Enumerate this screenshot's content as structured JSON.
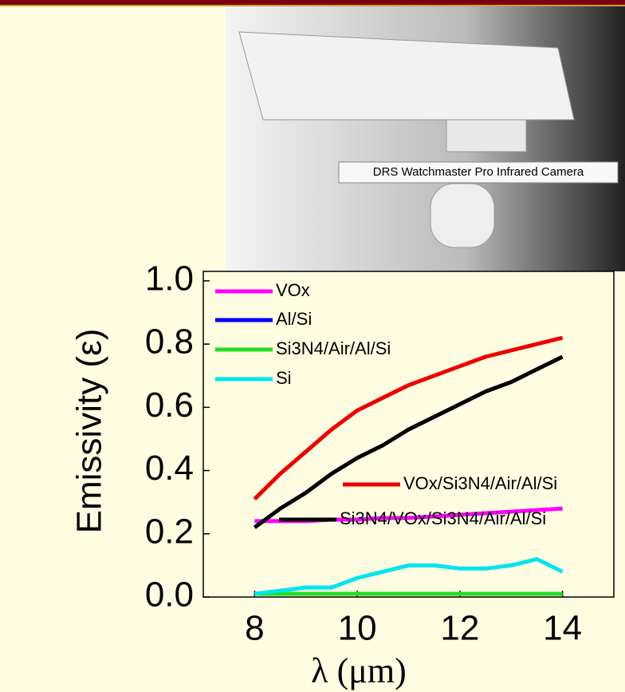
{
  "photo_caption": "DRS Watchmaster Pro Infrared Camera",
  "chart_data": {
    "type": "line",
    "x_label": "λ (μm)",
    "y_label": "Emissivity (ε)",
    "x": [
      8,
      8.5,
      9,
      9.5,
      10,
      10.5,
      11,
      11.5,
      12,
      12.5,
      13,
      13.5,
      14
    ],
    "series": [
      {
        "name": "VOx",
        "color": "#ff00ff",
        "values": [
          0.24,
          0.24,
          0.24,
          0.245,
          0.245,
          0.25,
          0.25,
          0.255,
          0.26,
          0.265,
          0.27,
          0.275,
          0.28
        ]
      },
      {
        "name": "Al/Si",
        "color": "#0000ff",
        "values": [
          0.01,
          0.01,
          0.01,
          0.01,
          0.01,
          0.01,
          0.01,
          0.01,
          0.01,
          0.01,
          0.01,
          0.01,
          0.01
        ]
      },
      {
        "name": "Si3N4/Air/Al/Si",
        "color": "#22dd22",
        "values": [
          0.01,
          0.01,
          0.01,
          0.01,
          0.01,
          0.01,
          0.01,
          0.01,
          0.01,
          0.01,
          0.01,
          0.01,
          0.01
        ]
      },
      {
        "name": "Si",
        "color": "#00e5ee",
        "values": [
          0.01,
          0.02,
          0.03,
          0.03,
          0.06,
          0.08,
          0.1,
          0.1,
          0.09,
          0.09,
          0.1,
          0.12,
          0.08
        ]
      },
      {
        "name": "VOx/Si3N4/Air/Al/Si",
        "color": "#ee0000",
        "values": [
          0.31,
          0.39,
          0.46,
          0.53,
          0.59,
          0.63,
          0.67,
          0.7,
          0.73,
          0.76,
          0.78,
          0.8,
          0.82
        ]
      },
      {
        "name": "Si3N4/VOx/Si3N4/Air/Al/Si",
        "color": "#000000",
        "values": [
          0.22,
          0.28,
          0.33,
          0.39,
          0.44,
          0.48,
          0.53,
          0.57,
          0.61,
          0.65,
          0.68,
          0.72,
          0.76
        ]
      }
    ],
    "xlim": [
      7,
      15
    ],
    "ylim": [
      0,
      1.03
    ],
    "xticks": [
      8,
      10,
      12,
      14
    ],
    "yticks": [
      {
        "value": 0,
        "label": "0.0"
      },
      0.2,
      0.4,
      0.6,
      0.8,
      {
        "value": 1,
        "label": "1.0"
      }
    ]
  }
}
